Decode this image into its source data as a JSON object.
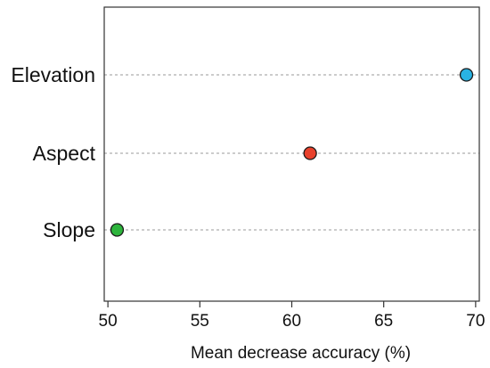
{
  "chart_data": {
    "type": "scatter",
    "orientation": "horizontal-dot",
    "title": "",
    "xlabel": "Mean decrease accuracy (%)",
    "ylabel": "",
    "xlim": [
      49.8,
      70.2
    ],
    "xticks": [
      50,
      55,
      60,
      65,
      70
    ],
    "grid": "horizontal-dashed",
    "legend": "none",
    "points": [
      {
        "category": "Elevation",
        "value": 69.5,
        "color": "#29b3e3"
      },
      {
        "category": "Aspect",
        "value": 61.0,
        "color": "#e8412c"
      },
      {
        "category": "Slope",
        "value": 50.5,
        "color": "#2db43c"
      }
    ]
  }
}
